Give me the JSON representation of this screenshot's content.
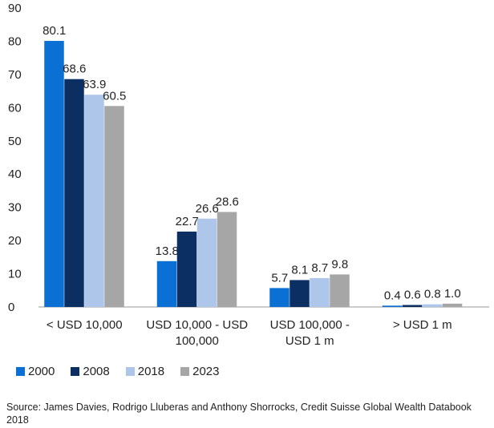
{
  "chart_data": {
    "type": "bar",
    "categories": [
      [
        "< USD 10,000"
      ],
      [
        "USD 10,000 - USD",
        "100,000"
      ],
      [
        "USD 100,000 -",
        "USD 1 m"
      ],
      [
        "> USD 1 m"
      ]
    ],
    "series": [
      {
        "name": "2000",
        "color": "#0a70d4",
        "values": [
          80.1,
          13.8,
          5.7,
          0.4
        ],
        "labels": [
          "80.1",
          "13.8",
          "5.7",
          "0.4"
        ]
      },
      {
        "name": "2008",
        "color": "#0b2f63",
        "values": [
          68.6,
          22.7,
          8.1,
          0.6
        ],
        "labels": [
          "68.6",
          "22.7",
          "8.1",
          "0.6"
        ]
      },
      {
        "name": "2018",
        "color": "#aec6ea",
        "values": [
          63.9,
          26.6,
          8.7,
          0.8
        ],
        "labels": [
          "63.9",
          "26.6",
          "8.7",
          "0.8"
        ]
      },
      {
        "name": "2023",
        "color": "#a6a6a6",
        "values": [
          60.5,
          28.6,
          9.8,
          1.0
        ],
        "labels": [
          "60.5",
          "28.6",
          "9.8",
          "1.0"
        ]
      }
    ],
    "yticks": [
      "0",
      "10",
      "20",
      "30",
      "40",
      "50",
      "60",
      "70",
      "80",
      "90"
    ],
    "ylim": [
      0,
      90
    ],
    "grid": false,
    "legend_position": "bottom-left"
  },
  "source": "Source: James Davies, Rodrigo Lluberas and Anthony Shorrocks, Credit Suisse Global Wealth Databook 2018"
}
